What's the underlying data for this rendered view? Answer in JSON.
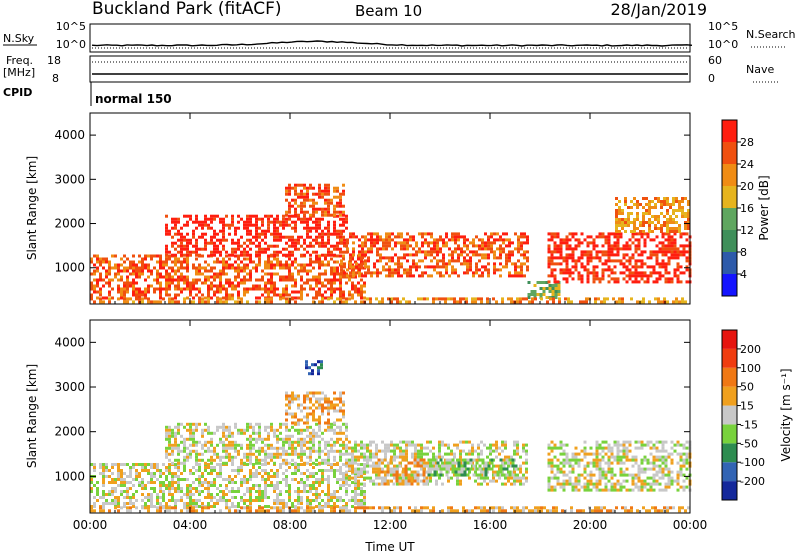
{
  "header": {
    "station": "Buckland Park (fitACF)",
    "beam": "Beam 10",
    "date": "28/Jan/2019"
  },
  "top_panels": {
    "nsky_label": "N.Sky",
    "nsky_ticks": [
      "10^5",
      "10^0"
    ],
    "nsearch_label": "N.Search",
    "nsearch_ticks": [
      "10^5",
      "10^0"
    ],
    "freq_label": "Freq.",
    "freq_unit": "[MHz]",
    "freq_ticks": [
      "18",
      "8"
    ],
    "nave_label": "Nave",
    "nave_ticks": [
      "60",
      "0"
    ],
    "cpid_label": "CPID",
    "cpid_value": "normal 150"
  },
  "chart_data": [
    {
      "type": "heatmap",
      "name": "power-panel",
      "xlabel": "Time UT",
      "ylabel": "Slant Range [km]",
      "xticks": [
        "00:00",
        "04:00",
        "08:00",
        "12:00",
        "16:00",
        "20:00",
        "00:00"
      ],
      "xlim_hours": [
        0,
        24
      ],
      "yticks": [
        "1000",
        "2000",
        "3000",
        "4000"
      ],
      "ylim_km": [
        180,
        4500
      ],
      "colorbar": {
        "label": "Power [dB]",
        "ticks": [
          "4",
          "8",
          "12",
          "16",
          "20",
          "24",
          "28"
        ],
        "colors": [
          "#1414ff",
          "#2d5aaa",
          "#3f8f5a",
          "#5fa65f",
          "#e6b41e",
          "#f08c14",
          "#f0500f",
          "#ff1e0f"
        ]
      },
      "echo_regions": [
        {
          "time_start": 0.0,
          "time_end": 11.0,
          "range_start": 300,
          "range_end": 1300,
          "level": 6
        },
        {
          "time_start": 3.0,
          "time_end": 10.3,
          "range_start": 1300,
          "range_end": 2200,
          "level": 7
        },
        {
          "time_start": 7.8,
          "time_end": 10.2,
          "range_start": 2200,
          "range_end": 2900,
          "level": 6
        },
        {
          "time_start": 10.0,
          "time_end": 17.5,
          "range_start": 800,
          "range_end": 1800,
          "level": 6
        },
        {
          "time_start": 17.5,
          "time_end": 18.8,
          "range_start": 300,
          "range_end": 700,
          "level": 3
        },
        {
          "time_start": 18.3,
          "time_end": 24.0,
          "range_start": 700,
          "range_end": 1800,
          "level": 7
        },
        {
          "time_start": 21.0,
          "time_end": 24.0,
          "range_start": 1800,
          "range_end": 2600,
          "level": 5
        },
        {
          "time_start": 0.0,
          "time_end": 24.0,
          "range_start": 200,
          "range_end": 330,
          "level": 5
        }
      ]
    },
    {
      "type": "heatmap",
      "name": "velocity-panel",
      "xlabel": "Time UT",
      "ylabel": "Slant Range [km]",
      "xticks": [
        "00:00",
        "04:00",
        "08:00",
        "12:00",
        "16:00",
        "20:00",
        "00:00"
      ],
      "xlim_hours": [
        0,
        24
      ],
      "yticks": [
        "1000",
        "2000",
        "3000",
        "4000"
      ],
      "ylim_km": [
        180,
        4500
      ],
      "colorbar": {
        "label": "Velocity [m s⁻¹]",
        "ticks": [
          "200",
          "100",
          "50",
          "15",
          "-15",
          "-50",
          "-100",
          "-200"
        ],
        "colors": [
          "#14289b",
          "#3264b4",
          "#2d8c50",
          "#78d23c",
          "#c8c8c8",
          "#f0a01e",
          "#f07814",
          "#f03c0f",
          "#e6140f"
        ]
      },
      "echo_regions": [
        {
          "time_start": 0.0,
          "time_end": 11.0,
          "range_start": 300,
          "range_end": 1300,
          "level": 4
        },
        {
          "time_start": 3.0,
          "time_end": 10.3,
          "range_start": 1300,
          "range_end": 2200,
          "level": 4
        },
        {
          "time_start": 7.8,
          "time_end": 10.2,
          "range_start": 2200,
          "range_end": 2900,
          "level": 5
        },
        {
          "time_start": 8.6,
          "time_end": 9.3,
          "range_start": 3300,
          "range_end": 3600,
          "level": 1
        },
        {
          "time_start": 10.2,
          "time_end": 17.5,
          "range_start": 800,
          "range_end": 1800,
          "level": 4
        },
        {
          "time_start": 13.5,
          "time_end": 17.0,
          "range_start": 1000,
          "range_end": 1400,
          "level": 3
        },
        {
          "time_start": 11.5,
          "time_end": 13.5,
          "range_start": 800,
          "range_end": 1400,
          "level": 5
        },
        {
          "time_start": 18.3,
          "time_end": 24.0,
          "range_start": 700,
          "range_end": 1800,
          "level": 4
        },
        {
          "time_start": 0.0,
          "time_end": 24.0,
          "range_start": 200,
          "range_end": 330,
          "level": 5
        }
      ]
    }
  ]
}
